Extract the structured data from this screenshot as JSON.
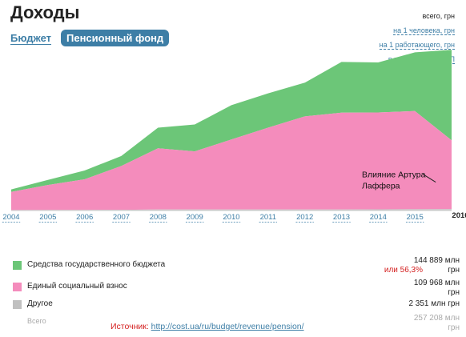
{
  "header": {
    "title": "Доходы",
    "tabs": [
      {
        "label": "Бюджет",
        "active": false
      },
      {
        "label": "Пенсионный фонд",
        "active": true
      }
    ],
    "modes": [
      {
        "label": "всего, грн",
        "active": true
      },
      {
        "label": "на 1 человека, грн",
        "active": false
      },
      {
        "label": "на 1 работающего, грн",
        "active": false
      },
      {
        "label": "в процентах от ВВП",
        "active": false
      }
    ]
  },
  "chart_data": {
    "type": "area",
    "stacked": true,
    "x": [
      "2004",
      "2005",
      "2006",
      "2007",
      "2008",
      "2009",
      "2010",
      "2011",
      "2012",
      "2013",
      "2014",
      "2015",
      "2016"
    ],
    "ylim": [
      0,
      260000
    ],
    "grid": false,
    "series": [
      {
        "name": "Другое",
        "color": "#c8c8c8",
        "values": [
          800,
          900,
          1000,
          1200,
          1500,
          1700,
          1600,
          1500,
          1600,
          1700,
          1900,
          2100,
          2351
        ]
      },
      {
        "name": "Единый социальный взнос",
        "color": "#f48cbc",
        "values": [
          29000,
          40000,
          49000,
          70000,
          98000,
          93000,
          112000,
          131000,
          149000,
          155000,
          155000,
          157000,
          109968
        ]
      },
      {
        "name": "Средства государственного бюджета",
        "color": "#6cc678",
        "values": [
          4000,
          8000,
          14000,
          16000,
          33000,
          43000,
          55000,
          55000,
          54000,
          81000,
          80000,
          94000,
          144889
        ]
      }
    ],
    "annotation": {
      "text": [
        "Влияние Артура",
        "Лаффера"
      ],
      "x": "2015",
      "y": 135000
    }
  },
  "legend": [
    {
      "label": "Средства государственного бюджета",
      "color": "#6cc678",
      "value": "144 889 млн",
      "unit": "грн",
      "share": "или 56,3%"
    },
    {
      "label": "Единый социальный взнос",
      "color": "#f48cbc",
      "value": "109 968 млн",
      "unit": "грн"
    },
    {
      "label": "Другое",
      "color": "#c0c0c0",
      "value": "2 351 млн грн"
    },
    {
      "label": "Всего",
      "value": "257 208 млн",
      "unit": "грн"
    }
  ],
  "source": {
    "label": "Источник:",
    "url": "http://cost.ua/ru/budget/revenue/pension/"
  }
}
